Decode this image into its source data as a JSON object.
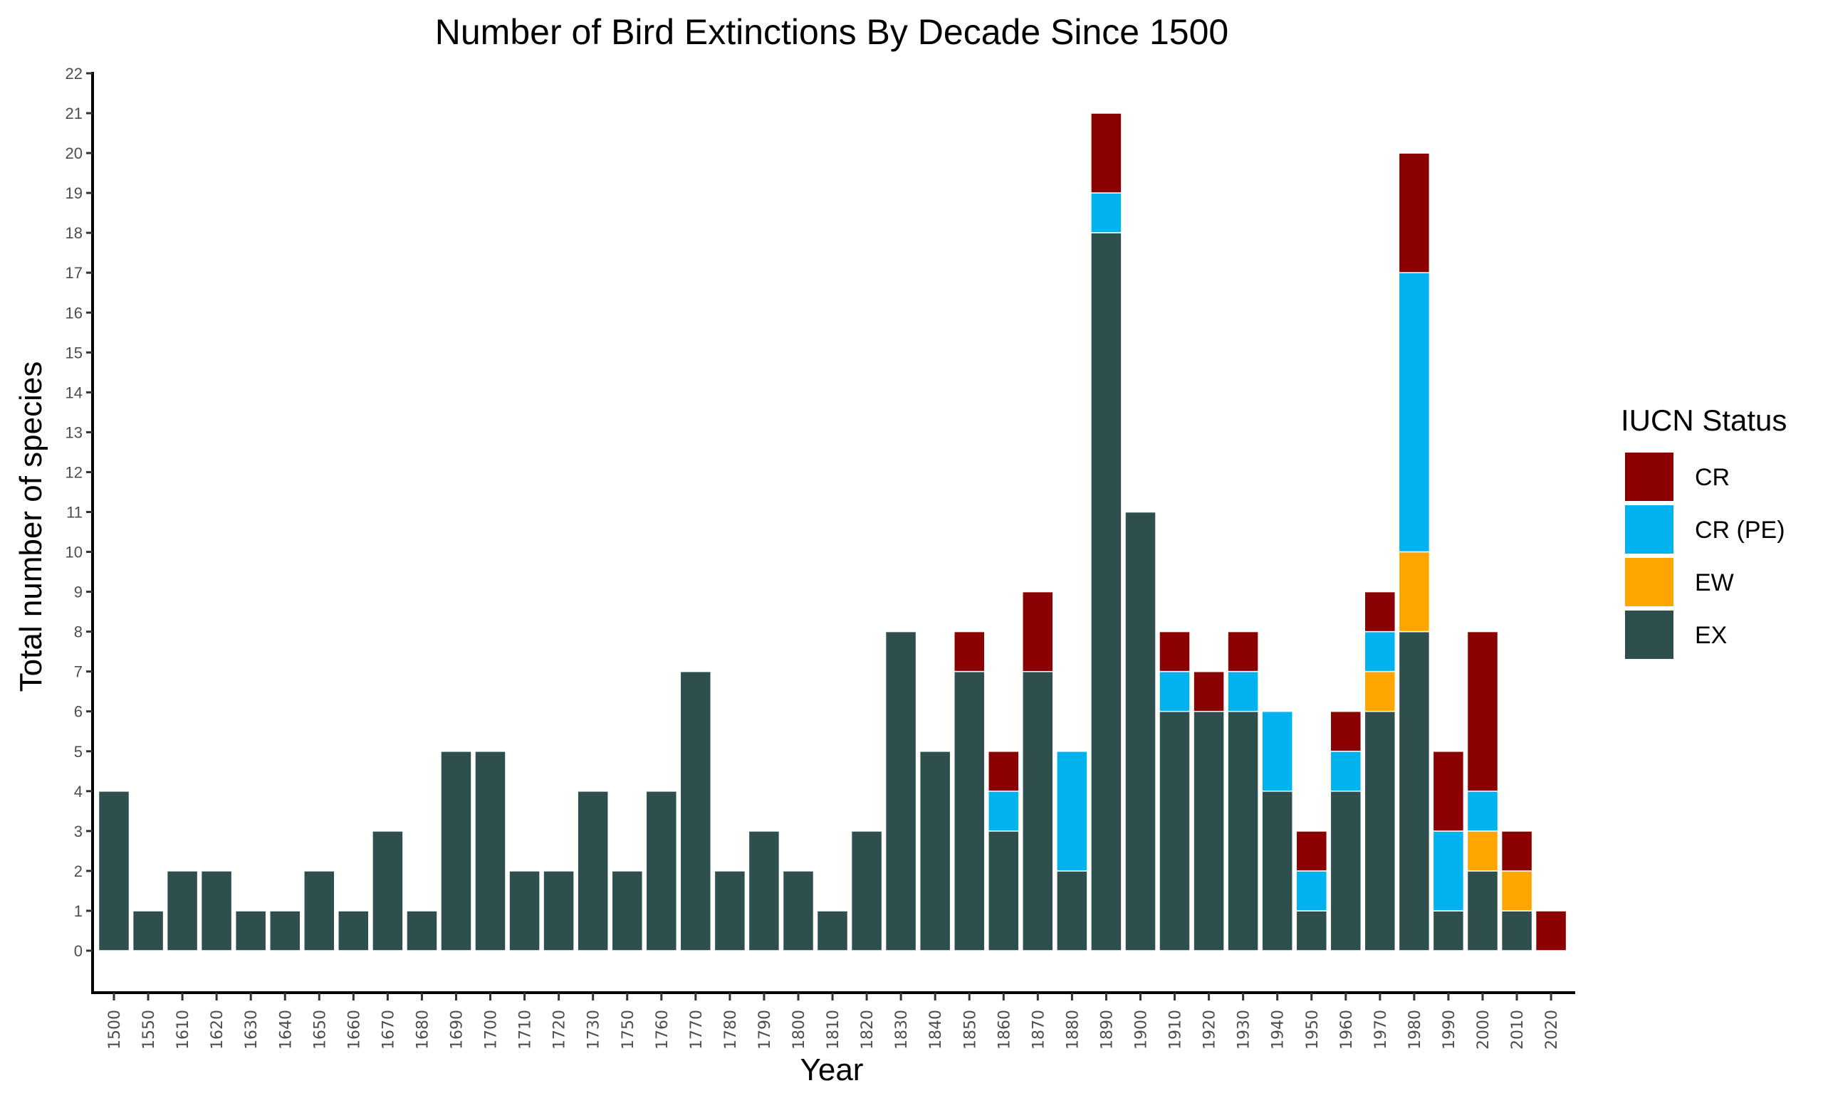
{
  "chart_data": {
    "type": "bar",
    "stacked": true,
    "title": "Number of Bird Extinctions By Decade Since 1500",
    "xlabel": "Year",
    "ylabel": "Total number of species",
    "ylim": [
      0,
      22
    ],
    "yticks": [
      0,
      1,
      2,
      3,
      4,
      5,
      6,
      7,
      8,
      9,
      10,
      11,
      12,
      13,
      14,
      15,
      16,
      17,
      18,
      19,
      20,
      21,
      22
    ],
    "grid": false,
    "legend": {
      "title": "IUCN Status",
      "placement": "right"
    },
    "categories": [
      "1500",
      "1550",
      "1610",
      "1620",
      "1630",
      "1640",
      "1650",
      "1660",
      "1670",
      "1680",
      "1690",
      "1700",
      "1710",
      "1720",
      "1730",
      "1750",
      "1760",
      "1770",
      "1780",
      "1790",
      "1800",
      "1810",
      "1820",
      "1830",
      "1840",
      "1850",
      "1860",
      "1870",
      "1880",
      "1890",
      "1900",
      "1910",
      "1920",
      "1930",
      "1940",
      "1950",
      "1960",
      "1970",
      "1980",
      "1990",
      "2000",
      "2010",
      "2020"
    ],
    "series": [
      {
        "name": "EX",
        "color": "#2f4f4f",
        "values": [
          4,
          1,
          2,
          2,
          1,
          1,
          2,
          1,
          3,
          1,
          5,
          5,
          2,
          2,
          4,
          2,
          4,
          7,
          2,
          3,
          2,
          1,
          3,
          8,
          5,
          7,
          3,
          7,
          2,
          18,
          11,
          6,
          6,
          6,
          4,
          1,
          4,
          6,
          8,
          1,
          2,
          1,
          0
        ]
      },
      {
        "name": "EW",
        "color": "#ffa500",
        "values": [
          0,
          0,
          0,
          0,
          0,
          0,
          0,
          0,
          0,
          0,
          0,
          0,
          0,
          0,
          0,
          0,
          0,
          0,
          0,
          0,
          0,
          0,
          0,
          0,
          0,
          0,
          0,
          0,
          0,
          0,
          0,
          0,
          0,
          0,
          0,
          0,
          0,
          1,
          2,
          0,
          1,
          1,
          0
        ]
      },
      {
        "name": "CR (PE)",
        "color": "#00b2ee",
        "values": [
          0,
          0,
          0,
          0,
          0,
          0,
          0,
          0,
          0,
          0,
          0,
          0,
          0,
          0,
          0,
          0,
          0,
          0,
          0,
          0,
          0,
          0,
          0,
          0,
          0,
          0,
          1,
          0,
          3,
          1,
          0,
          1,
          0,
          1,
          2,
          1,
          1,
          1,
          7,
          2,
          1,
          0,
          0
        ]
      },
      {
        "name": "CR",
        "color": "#8b0000",
        "values": [
          0,
          0,
          0,
          0,
          0,
          0,
          0,
          0,
          0,
          0,
          0,
          0,
          0,
          0,
          0,
          0,
          0,
          0,
          0,
          0,
          0,
          0,
          0,
          0,
          0,
          1,
          1,
          2,
          0,
          2,
          0,
          1,
          1,
          1,
          0,
          1,
          1,
          1,
          3,
          2,
          4,
          1,
          1
        ]
      }
    ],
    "legend_order": [
      "CR",
      "CR (PE)",
      "EW",
      "EX"
    ]
  }
}
